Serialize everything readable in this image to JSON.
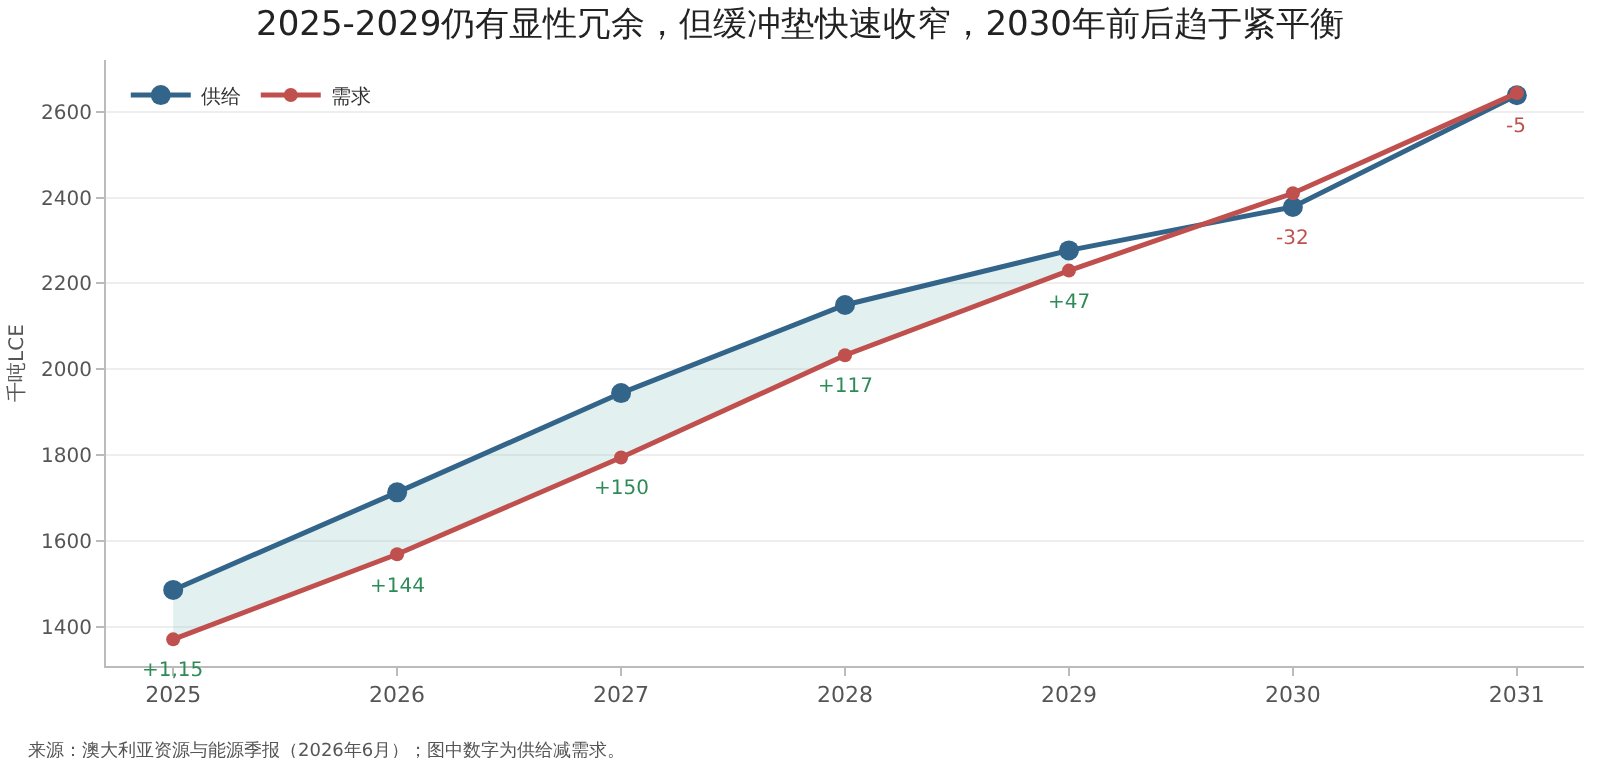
{
  "chart_data": {
    "type": "line",
    "title": "2025-2029仍有显性冗余，但缓冲垫快速收窄，2030年前后趋于紧平衡",
    "ylabel": "千吨LCE",
    "x": [
      2025,
      2026,
      2027,
      2028,
      2029,
      2030,
      2031
    ],
    "series": [
      {
        "name": "供给",
        "color": "#33658a",
        "values": [
          1487,
          1714,
          1945,
          2150,
          2277,
          2378,
          2638
        ],
        "lower": [
          1372,
          1570,
          1795,
          2033,
          2230,
          null,
          null
        ],
        "upper": [
          1487,
          1714,
          1945,
          2150,
          2277,
          null,
          null
        ]
      },
      {
        "name": "需求",
        "color": "#c0504d",
        "values": [
          1372,
          1570,
          1795,
          2033,
          2230,
          2410,
          2643
        ]
      }
    ],
    "annotations": [
      {
        "text": "+1,15",
        "x": 2025,
        "y": 1372
      },
      {
        "text": "+144",
        "x": 2026,
        "y": 1570
      },
      {
        "text": "+150",
        "x": 2027,
        "y": 1795
      },
      {
        "text": "+117",
        "x": 2028,
        "y": 2033
      },
      {
        "text": "+47",
        "x": 2029,
        "y": 2230
      },
      {
        "text": "-32",
        "x": 2030,
        "y": 2378
      },
      {
        "text": "-5",
        "x": 2031,
        "y": 2638
      },
      "来源：澳大利亚资源与能源季报（2026年6月）；图中数字为供给减需求。"
    ],
    "xlim": [
      2024.7,
      2031.3
    ],
    "xticks": [
      2025,
      2026,
      2027,
      2028,
      2029,
      2030,
      2031
    ],
    "ylim": [
      1310,
      2720
    ],
    "yticks": [
      1400,
      1600,
      1800,
      2000,
      2200,
      2400,
      2600
    ],
    "grid": "y",
    "legend": "top left",
    "marker": "circle",
    "line_style": "solid"
  }
}
